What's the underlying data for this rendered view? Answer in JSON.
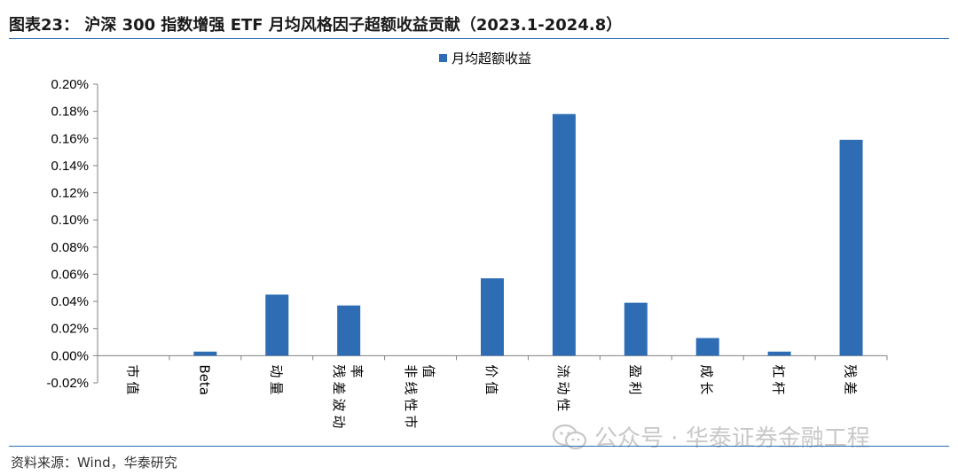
{
  "header": {
    "title": "图表23：   沪深 300 指数增强 ETF 月均风格因子超额收益贡献（2023.1-2024.8）"
  },
  "footer": {
    "source": "资料来源：Wind，华泰研究"
  },
  "watermark": {
    "text": "公众号 · 华泰证券金融工程",
    "icon": "wechat-icon"
  },
  "colors": {
    "bar": "#2e6db4",
    "rule": "#2e6db4"
  },
  "chart_data": {
    "type": "bar",
    "title": "",
    "xlabel": "",
    "ylabel": "",
    "ylim": [
      -0.0002,
      0.002
    ],
    "ytick_step": 0.0002,
    "grid": false,
    "legend_position": "top-center",
    "categories": [
      [
        "市值"
      ],
      [
        "Beta"
      ],
      [
        "动量"
      ],
      [
        "残差波动",
        "率"
      ],
      [
        "非线性市",
        "值"
      ],
      [
        "价值"
      ],
      [
        "流动性"
      ],
      [
        "盈利"
      ],
      [
        "成长"
      ],
      [
        "杠杆"
      ],
      [
        "残差"
      ]
    ],
    "series": [
      {
        "name": "月均超额收益",
        "values": [
          0.0,
          3e-05,
          0.00045,
          0.00037,
          0.0,
          0.00057,
          0.00178,
          0.00039,
          0.00013,
          3e-05,
          0.00159
        ]
      }
    ]
  }
}
